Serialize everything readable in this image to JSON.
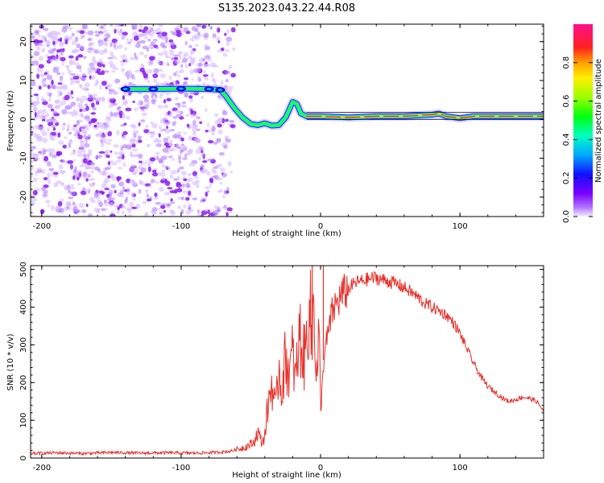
{
  "title": "S135.2023.043.22.44.R08",
  "chart_data": [
    {
      "type": "heatmap",
      "xlabel": "Height of straight line (km)",
      "ylabel": "Frequency (Hz)",
      "xlim": [
        -208,
        160
      ],
      "ylim": [
        -25,
        24.5
      ],
      "xticks": [
        -200,
        -100,
        0,
        100
      ],
      "yticks": [
        -20,
        -10,
        0,
        10,
        20
      ],
      "colorbar": {
        "label": "Normalized spectral amplitude",
        "range": [
          0,
          1
        ],
        "ticks": [
          "0.0",
          "0.2",
          "0.4",
          "0.6",
          "0.8"
        ],
        "colormap": "rainbow (violet-blue-cyan-green-yellow-red-magenta)"
      },
      "ridge": {
        "description": "dominant frequency vs height",
        "points": [
          [
            -140,
            7.8
          ],
          [
            -120,
            7.8
          ],
          [
            -100,
            7.9
          ],
          [
            -80,
            7.8
          ],
          [
            -72,
            7.6
          ],
          [
            -68,
            6.0
          ],
          [
            -62,
            3.0
          ],
          [
            -56,
            0.5
          ],
          [
            -50,
            -1.2
          ],
          [
            -45,
            -1.5
          ],
          [
            -40,
            -1.0
          ],
          [
            -35,
            -1.6
          ],
          [
            -30,
            -1.5
          ],
          [
            -25,
            0.5
          ],
          [
            -20,
            4.5
          ],
          [
            -17,
            4.0
          ],
          [
            -14,
            1.5
          ],
          [
            -10,
            0.8
          ],
          [
            0,
            0.8
          ],
          [
            20,
            0.5
          ],
          [
            40,
            0.8
          ],
          [
            60,
            0.8
          ],
          [
            80,
            1.2
          ],
          [
            85,
            1.5
          ],
          [
            90,
            0.8
          ],
          [
            100,
            0.3
          ],
          [
            110,
            0.8
          ],
          [
            130,
            0.8
          ],
          [
            160,
            0.8
          ]
        ]
      },
      "noise_region": {
        "x_range": [
          -208,
          -62
        ],
        "y_range": [
          -25,
          24.5
        ]
      },
      "colors": {
        "noise": "#8a2be2",
        "ridge_core": "#ff2020"
      }
    },
    {
      "type": "line",
      "xlabel": "Height of straight line (km)",
      "ylabel": "SNR (10 * v/v)",
      "xlim": [
        -208,
        160
      ],
      "ylim": [
        0,
        510
      ],
      "xticks": [
        -200,
        -100,
        0,
        100
      ],
      "yticks": [
        0,
        100,
        200,
        300,
        400,
        500
      ],
      "color": "#e8302a",
      "series": [
        {
          "x": [
            -208,
            -190,
            -170,
            -150,
            -130,
            -110,
            -90,
            -75,
            -65,
            -55,
            -48,
            -45,
            -42,
            -40,
            -38,
            -35,
            -32,
            -30,
            -28,
            -25,
            -22,
            -20,
            -18,
            -15,
            -12,
            -10,
            -8,
            -6,
            -5,
            -3,
            -1,
            0,
            2,
            4,
            6,
            8,
            10,
            15,
            20,
            25,
            30,
            35,
            40,
            45,
            50,
            55,
            60,
            65,
            70,
            75,
            80,
            85,
            90,
            95,
            100,
            105,
            110,
            115,
            120,
            125,
            130,
            135,
            140,
            145,
            150,
            155,
            160
          ],
          "y": [
            12,
            14,
            12,
            15,
            13,
            14,
            13,
            15,
            18,
            28,
            40,
            70,
            40,
            60,
            130,
            200,
            120,
            250,
            180,
            270,
            220,
            280,
            200,
            330,
            260,
            310,
            430,
            280,
            500,
            200,
            330,
            110,
            250,
            300,
            340,
            380,
            400,
            430,
            450,
            465,
            470,
            475,
            478,
            472,
            468,
            460,
            452,
            440,
            425,
            410,
            400,
            390,
            380,
            360,
            330,
            290,
            250,
            215,
            190,
            175,
            160,
            150,
            155,
            162,
            158,
            150,
            125
          ]
        }
      ]
    }
  ]
}
